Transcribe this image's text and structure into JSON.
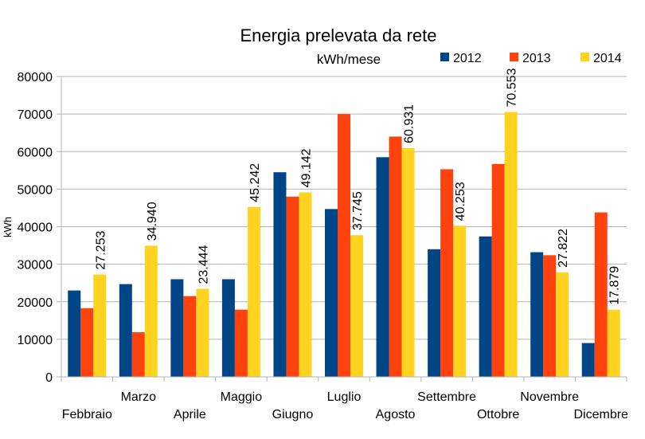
{
  "chart_data": {
    "type": "bar",
    "title": "Energia prelevata da rete",
    "subtitle": "kWh/mese",
    "ylabel": "kWh",
    "xlabel": "",
    "ylim": [
      0,
      80000
    ],
    "yticks": [
      "0",
      "10000",
      "20000",
      "30000",
      "40000",
      "50000",
      "60000",
      "70000",
      "80000"
    ],
    "grid": true,
    "legend_position": "top-right",
    "categories": [
      "Febbraio",
      "Marzo",
      "Aprile",
      "Maggio",
      "Giugno",
      "Luglio",
      "Agosto",
      "Settembre",
      "Ottobre",
      "Novembre",
      "Dicembre"
    ],
    "series": [
      {
        "name": "2012",
        "color": "#004586",
        "values": [
          23000,
          24700,
          26000,
          26000,
          54500,
          44700,
          58500,
          34000,
          37400,
          33200,
          9000
        ]
      },
      {
        "name": "2013",
        "color": "#ff420e",
        "values": [
          18300,
          11900,
          21500,
          17900,
          48000,
          70000,
          64000,
          55300,
          56700,
          32400,
          43800
        ]
      },
      {
        "name": "2014",
        "color": "#ffd320",
        "values": [
          27253,
          34940,
          23444,
          45242,
          49142,
          37745,
          60931,
          40253,
          70553,
          27822,
          17879
        ],
        "labels": [
          "27.253",
          "34.940",
          "23.444",
          "45.242",
          "49.142",
          "37.745",
          "60.931",
          "40.253",
          "70.553",
          "27.822",
          "17.879"
        ]
      }
    ]
  }
}
